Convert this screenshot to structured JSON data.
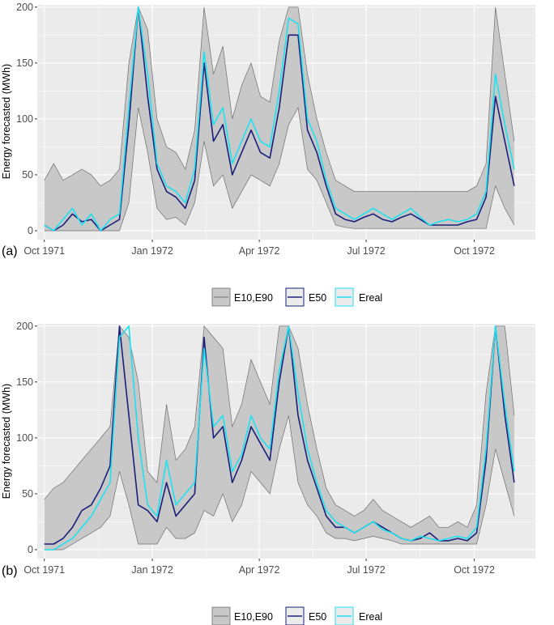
{
  "colors": {
    "panel_bg": "#ebebeb",
    "grid": "#ffffff",
    "ribbon_fill": "#c8c8c8",
    "ribbon_line": "#6e6e6e",
    "e50": "#1a1f7a",
    "ereal": "#1ee1f0"
  },
  "panel_labels": [
    "(a)",
    "(b)"
  ],
  "legend": {
    "items": [
      {
        "key": "ribbon",
        "label": "E10,E90"
      },
      {
        "key": "e50",
        "label": "E50"
      },
      {
        "key": "ereal",
        "label": "Ereal"
      }
    ]
  },
  "chart_data": [
    {
      "type": "line",
      "panel": "(a)",
      "ylabel": "Energy forecasted (MWh)",
      "xlabel": "",
      "ylim": [
        -8,
        202
      ],
      "xlim_day": [
        -6,
        418
      ],
      "yticks": [
        0,
        50,
        100,
        150,
        200
      ],
      "xticks": [
        {
          "label": "Oct 1971",
          "day": 0
        },
        {
          "label": "Jan 1972",
          "day": 92
        },
        {
          "label": "Apr 1972",
          "day": 183
        },
        {
          "label": "Jul 1972",
          "day": 274
        },
        {
          "label": "Oct 1972",
          "day": 366
        }
      ],
      "x_day": [
        0,
        8,
        16,
        24,
        32,
        40,
        48,
        56,
        64,
        72,
        80,
        88,
        96,
        104,
        112,
        120,
        128,
        136,
        144,
        152,
        160,
        168,
        176,
        184,
        192,
        200,
        208,
        216,
        224,
        232,
        240,
        248,
        256,
        264,
        272,
        280,
        288,
        296,
        304,
        312,
        320,
        328,
        336,
        344,
        352,
        360,
        368,
        376,
        384,
        392,
        400
      ],
      "series": [
        {
          "name": "E10",
          "values": [
            0,
            0,
            0,
            0,
            0,
            0,
            0,
            0,
            0,
            25,
            110,
            70,
            20,
            10,
            12,
            5,
            25,
            80,
            40,
            50,
            20,
            35,
            50,
            45,
            40,
            60,
            95,
            110,
            55,
            45,
            25,
            5,
            3,
            2,
            2,
            2,
            2,
            2,
            2,
            2,
            2,
            2,
            2,
            2,
            2,
            2,
            2,
            2,
            40,
            20,
            5
          ]
        },
        {
          "name": "E50",
          "values": [
            5,
            0,
            5,
            15,
            8,
            10,
            0,
            5,
            10,
            95,
            200,
            120,
            55,
            35,
            30,
            20,
            45,
            150,
            80,
            95,
            50,
            70,
            90,
            70,
            65,
            110,
            175,
            175,
            90,
            70,
            40,
            15,
            10,
            8,
            12,
            15,
            10,
            8,
            12,
            15,
            10,
            5,
            5,
            5,
            5,
            8,
            10,
            30,
            120,
            80,
            40
          ]
        },
        {
          "name": "E90",
          "values": [
            45,
            60,
            45,
            50,
            55,
            50,
            40,
            45,
            55,
            150,
            200,
            180,
            100,
            75,
            70,
            55,
            90,
            200,
            140,
            165,
            100,
            130,
            150,
            120,
            115,
            170,
            200,
            200,
            140,
            100,
            70,
            45,
            40,
            35,
            35,
            35,
            35,
            35,
            35,
            35,
            35,
            35,
            35,
            35,
            35,
            35,
            40,
            60,
            200,
            140,
            80
          ]
        },
        {
          "name": "Ereal",
          "values": [
            5,
            0,
            10,
            20,
            5,
            15,
            0,
            10,
            15,
            110,
            200,
            140,
            60,
            40,
            35,
            25,
            55,
            160,
            95,
            110,
            60,
            80,
            100,
            80,
            75,
            125,
            190,
            185,
            100,
            80,
            45,
            20,
            15,
            10,
            15,
            20,
            15,
            10,
            15,
            20,
            12,
            5,
            8,
            10,
            8,
            10,
            15,
            35,
            140,
            95,
            55
          ]
        }
      ]
    },
    {
      "type": "line",
      "panel": "(b)",
      "ylabel": "Energy forecasted (MWh)",
      "xlabel": "",
      "ylim": [
        -8,
        202
      ],
      "xlim_day": [
        -6,
        418
      ],
      "yticks": [
        0,
        50,
        100,
        150,
        200
      ],
      "xticks": [
        {
          "label": "Oct 1971",
          "day": 0
        },
        {
          "label": "Jan 1972",
          "day": 92
        },
        {
          "label": "Apr 1972",
          "day": 183
        },
        {
          "label": "Jul 1972",
          "day": 274
        },
        {
          "label": "Oct 1972",
          "day": 366
        }
      ],
      "x_day": [
        0,
        8,
        16,
        24,
        32,
        40,
        48,
        56,
        64,
        72,
        80,
        88,
        96,
        104,
        112,
        120,
        128,
        136,
        144,
        152,
        160,
        168,
        176,
        184,
        192,
        200,
        208,
        216,
        224,
        232,
        240,
        248,
        256,
        264,
        272,
        280,
        288,
        296,
        304,
        312,
        320,
        328,
        336,
        344,
        352,
        360,
        368,
        376,
        384,
        392,
        400
      ],
      "series": [
        {
          "name": "E10",
          "values": [
            0,
            0,
            0,
            5,
            10,
            15,
            20,
            30,
            70,
            40,
            5,
            5,
            5,
            20,
            10,
            10,
            15,
            35,
            30,
            50,
            25,
            40,
            70,
            60,
            50,
            90,
            120,
            60,
            40,
            30,
            15,
            10,
            10,
            8,
            10,
            12,
            10,
            8,
            5,
            5,
            5,
            5,
            5,
            5,
            5,
            5,
            5,
            40,
            90,
            60,
            30
          ]
        },
        {
          "name": "E50",
          "values": [
            5,
            5,
            10,
            20,
            35,
            40,
            55,
            75,
            200,
            120,
            40,
            35,
            25,
            60,
            30,
            40,
            50,
            190,
            100,
            110,
            60,
            80,
            110,
            95,
            80,
            150,
            200,
            120,
            80,
            55,
            30,
            20,
            20,
            15,
            20,
            25,
            20,
            15,
            10,
            8,
            10,
            15,
            8,
            8,
            10,
            8,
            15,
            80,
            200,
            120,
            60
          ]
        },
        {
          "name": "E90",
          "values": [
            45,
            55,
            60,
            70,
            80,
            90,
            100,
            110,
            200,
            190,
            150,
            70,
            60,
            130,
            80,
            90,
            110,
            200,
            190,
            180,
            110,
            130,
            170,
            150,
            130,
            200,
            200,
            180,
            130,
            90,
            55,
            40,
            35,
            30,
            35,
            45,
            35,
            30,
            25,
            20,
            25,
            30,
            20,
            20,
            25,
            20,
            40,
            140,
            200,
            200,
            120
          ]
        },
        {
          "name": "Ereal",
          "values": [
            0,
            0,
            5,
            10,
            20,
            30,
            45,
            60,
            190,
            200,
            100,
            40,
            30,
            80,
            40,
            50,
            60,
            180,
            110,
            120,
            70,
            85,
            120,
            100,
            90,
            160,
            200,
            140,
            90,
            60,
            35,
            25,
            20,
            15,
            20,
            25,
            18,
            15,
            10,
            8,
            12,
            10,
            8,
            10,
            12,
            10,
            20,
            90,
            200,
            130,
            70
          ]
        }
      ]
    }
  ]
}
